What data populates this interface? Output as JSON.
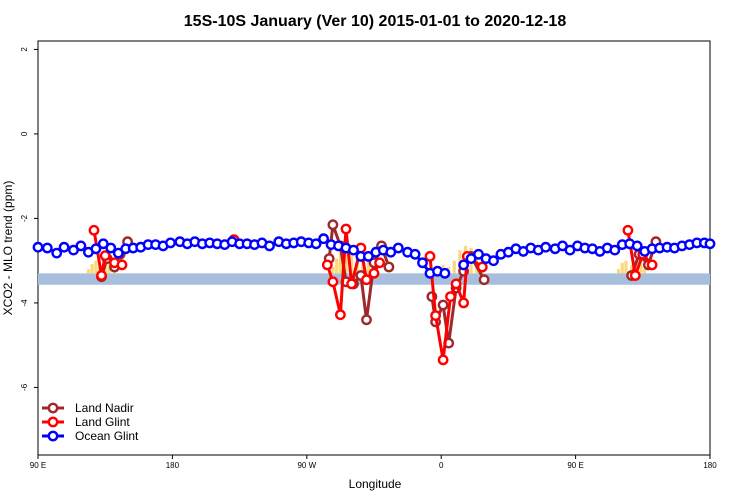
{
  "chart_data": {
    "type": "line",
    "title": "15S-10S January (Ver 10)   2015-01-01 to 2020-12-18",
    "xlabel": "Longitude",
    "ylabel": "XCO2 - MLO trend (ppm)",
    "xlim": [
      90,
      450
    ],
    "ylim": [
      -7.6,
      2.2
    ],
    "x_ticks": [
      {
        "value": 90,
        "label": "90 E"
      },
      {
        "value": 162,
        "label": "180"
      },
      {
        "value": 234,
        "label": "90 W"
      },
      {
        "value": 306,
        "label": "0"
      },
      {
        "value": 378,
        "label": "90 E"
      },
      {
        "value": 450,
        "label": "180"
      }
    ],
    "y_ticks": [
      {
        "value": 2,
        "label": "2"
      },
      {
        "value": 0,
        "label": "0"
      },
      {
        "value": -2,
        "label": "-2"
      },
      {
        "value": -4,
        "label": "-4"
      },
      {
        "value": -6,
        "label": "-6"
      }
    ],
    "reference_band": {
      "ymin": -3.57,
      "ymax": -3.3,
      "color": "#a7bfdc"
    },
    "histogram_color": "#fbd97a",
    "histograms": [
      {
        "x": [
          117,
          119,
          121,
          123,
          124,
          126,
          128,
          131
        ],
        "height": [
          0.1,
          0.22,
          0.3,
          0.15,
          0.12,
          0.18,
          0.35,
          0.12
        ]
      },
      {
        "x": [
          248,
          250,
          252,
          255,
          258,
          261,
          264,
          267,
          270
        ],
        "height": [
          0.15,
          0.35,
          0.5,
          0.55,
          0.5,
          0.45,
          0.4,
          0.3,
          0.15
        ]
      },
      {
        "x": [
          304,
          307,
          310,
          313,
          316,
          319,
          322,
          325,
          328
        ],
        "height": [
          0.1,
          0.2,
          0.15,
          0.3,
          0.55,
          0.65,
          0.6,
          0.5,
          0.25
        ]
      },
      {
        "x": [
          401,
          403,
          405,
          408,
          410,
          413,
          415
        ],
        "height": [
          0.1,
          0.25,
          0.3,
          0.2,
          0.18,
          0.35,
          0.12
        ]
      }
    ],
    "legend_position": "bottom-left",
    "series": [
      {
        "name": "Land Nadir",
        "color": "#a0282b",
        "segments": [
          {
            "x": [
              124,
              127,
              131,
              134,
              138
            ],
            "y": [
              -3.38,
              -2.95,
              -3.15,
              -2.85,
              -2.55
            ]
          },
          {
            "x": [
              246,
              248,
              252,
              255,
              259,
              263,
              266,
              270,
              274,
              278
            ],
            "y": [
              -2.95,
              -2.15,
              -2.65,
              -3.5,
              -3.55,
              -3.35,
              -4.4,
              -3.05,
              -2.65,
              -3.15
            ]
          },
          {
            "x": [
              301,
              303,
              307,
              310,
              314,
              318,
              322,
              329
            ],
            "y": [
              -3.85,
              -4.45,
              -4.05,
              -4.95,
              -3.65,
              -3.25,
              -2.9,
              -3.45
            ]
          },
          {
            "x": [
              408,
              412,
              417,
              421
            ],
            "y": [
              -3.35,
              -2.85,
              -3.1,
              -2.55
            ]
          }
        ]
      },
      {
        "name": "Land Glint",
        "color": "#ff0000",
        "segments": [
          {
            "x": [
              120,
              124,
              126,
              131,
              135
            ],
            "y": [
              -2.28,
              -3.35,
              -2.88,
              -3.05,
              -3.1
            ]
          },
          {
            "x": [
              195
            ],
            "y": [
              -2.5
            ]
          },
          {
            "x": [
              245,
              248,
              252,
              255,
              258,
              263,
              266,
              270,
              273
            ],
            "y": [
              -3.1,
              -3.5,
              -4.28,
              -2.25,
              -3.55,
              -2.7,
              -3.45,
              -3.3,
              -3.05
            ]
          },
          {
            "x": [
              300,
              303,
              307,
              311,
              314,
              318,
              320,
              328
            ],
            "y": [
              -2.9,
              -4.3,
              -5.35,
              -3.85,
              -3.55,
              -4.0,
              -2.9,
              -3.15
            ]
          },
          {
            "x": [
              406,
              410,
              414,
              419
            ],
            "y": [
              -2.28,
              -3.35,
              -2.85,
              -3.1
            ]
          }
        ]
      },
      {
        "name": "Ocean Glint",
        "color": "#0000ff",
        "segments": [
          {
            "x": [
              90,
              95,
              100,
              104,
              109,
              113,
              117,
              121,
              125,
              129,
              133,
              137,
              141,
              145,
              149,
              153,
              157,
              161,
              166,
              170,
              174,
              178,
              182,
              186,
              190,
              194,
              198,
              202,
              206,
              210,
              214,
              219,
              223,
              227,
              231,
              235,
              239,
              243,
              247,
              251,
              255,
              259,
              263,
              267,
              271,
              275,
              279,
              283,
              288,
              292,
              296,
              300,
              304,
              308
            ],
            "y": [
              -2.68,
              -2.7,
              -2.82,
              -2.68,
              -2.75,
              -2.65,
              -2.8,
              -2.72,
              -2.6,
              -2.7,
              -2.82,
              -2.72,
              -2.7,
              -2.68,
              -2.62,
              -2.62,
              -2.65,
              -2.58,
              -2.55,
              -2.6,
              -2.55,
              -2.6,
              -2.58,
              -2.6,
              -2.62,
              -2.55,
              -2.6,
              -2.6,
              -2.62,
              -2.58,
              -2.65,
              -2.55,
              -2.6,
              -2.58,
              -2.55,
              -2.58,
              -2.6,
              -2.48,
              -2.62,
              -2.65,
              -2.7,
              -2.75,
              -2.9,
              -2.9,
              -2.8,
              -2.75,
              -2.8,
              -2.7,
              -2.8,
              -2.85,
              -3.05,
              -3.3,
              -3.25,
              -3.3
            ]
          },
          {
            "x": [
              318,
              322,
              326,
              330,
              334,
              338,
              342,
              346,
              350,
              354,
              358,
              362,
              367,
              371,
              375,
              379,
              383,
              387,
              391,
              395,
              399,
              403,
              407,
              411,
              415,
              419,
              423,
              427,
              431,
              435,
              439,
              443,
              447,
              450
            ],
            "y": [
              -3.1,
              -2.95,
              -2.85,
              -2.95,
              -3.0,
              -2.85,
              -2.8,
              -2.72,
              -2.78,
              -2.7,
              -2.75,
              -2.68,
              -2.72,
              -2.65,
              -2.75,
              -2.65,
              -2.7,
              -2.72,
              -2.78,
              -2.7,
              -2.75,
              -2.62,
              -2.6,
              -2.65,
              -2.78,
              -2.72,
              -2.7,
              -2.68,
              -2.7,
              -2.65,
              -2.62,
              -2.58,
              -2.58,
              -2.6
            ]
          }
        ]
      }
    ]
  }
}
